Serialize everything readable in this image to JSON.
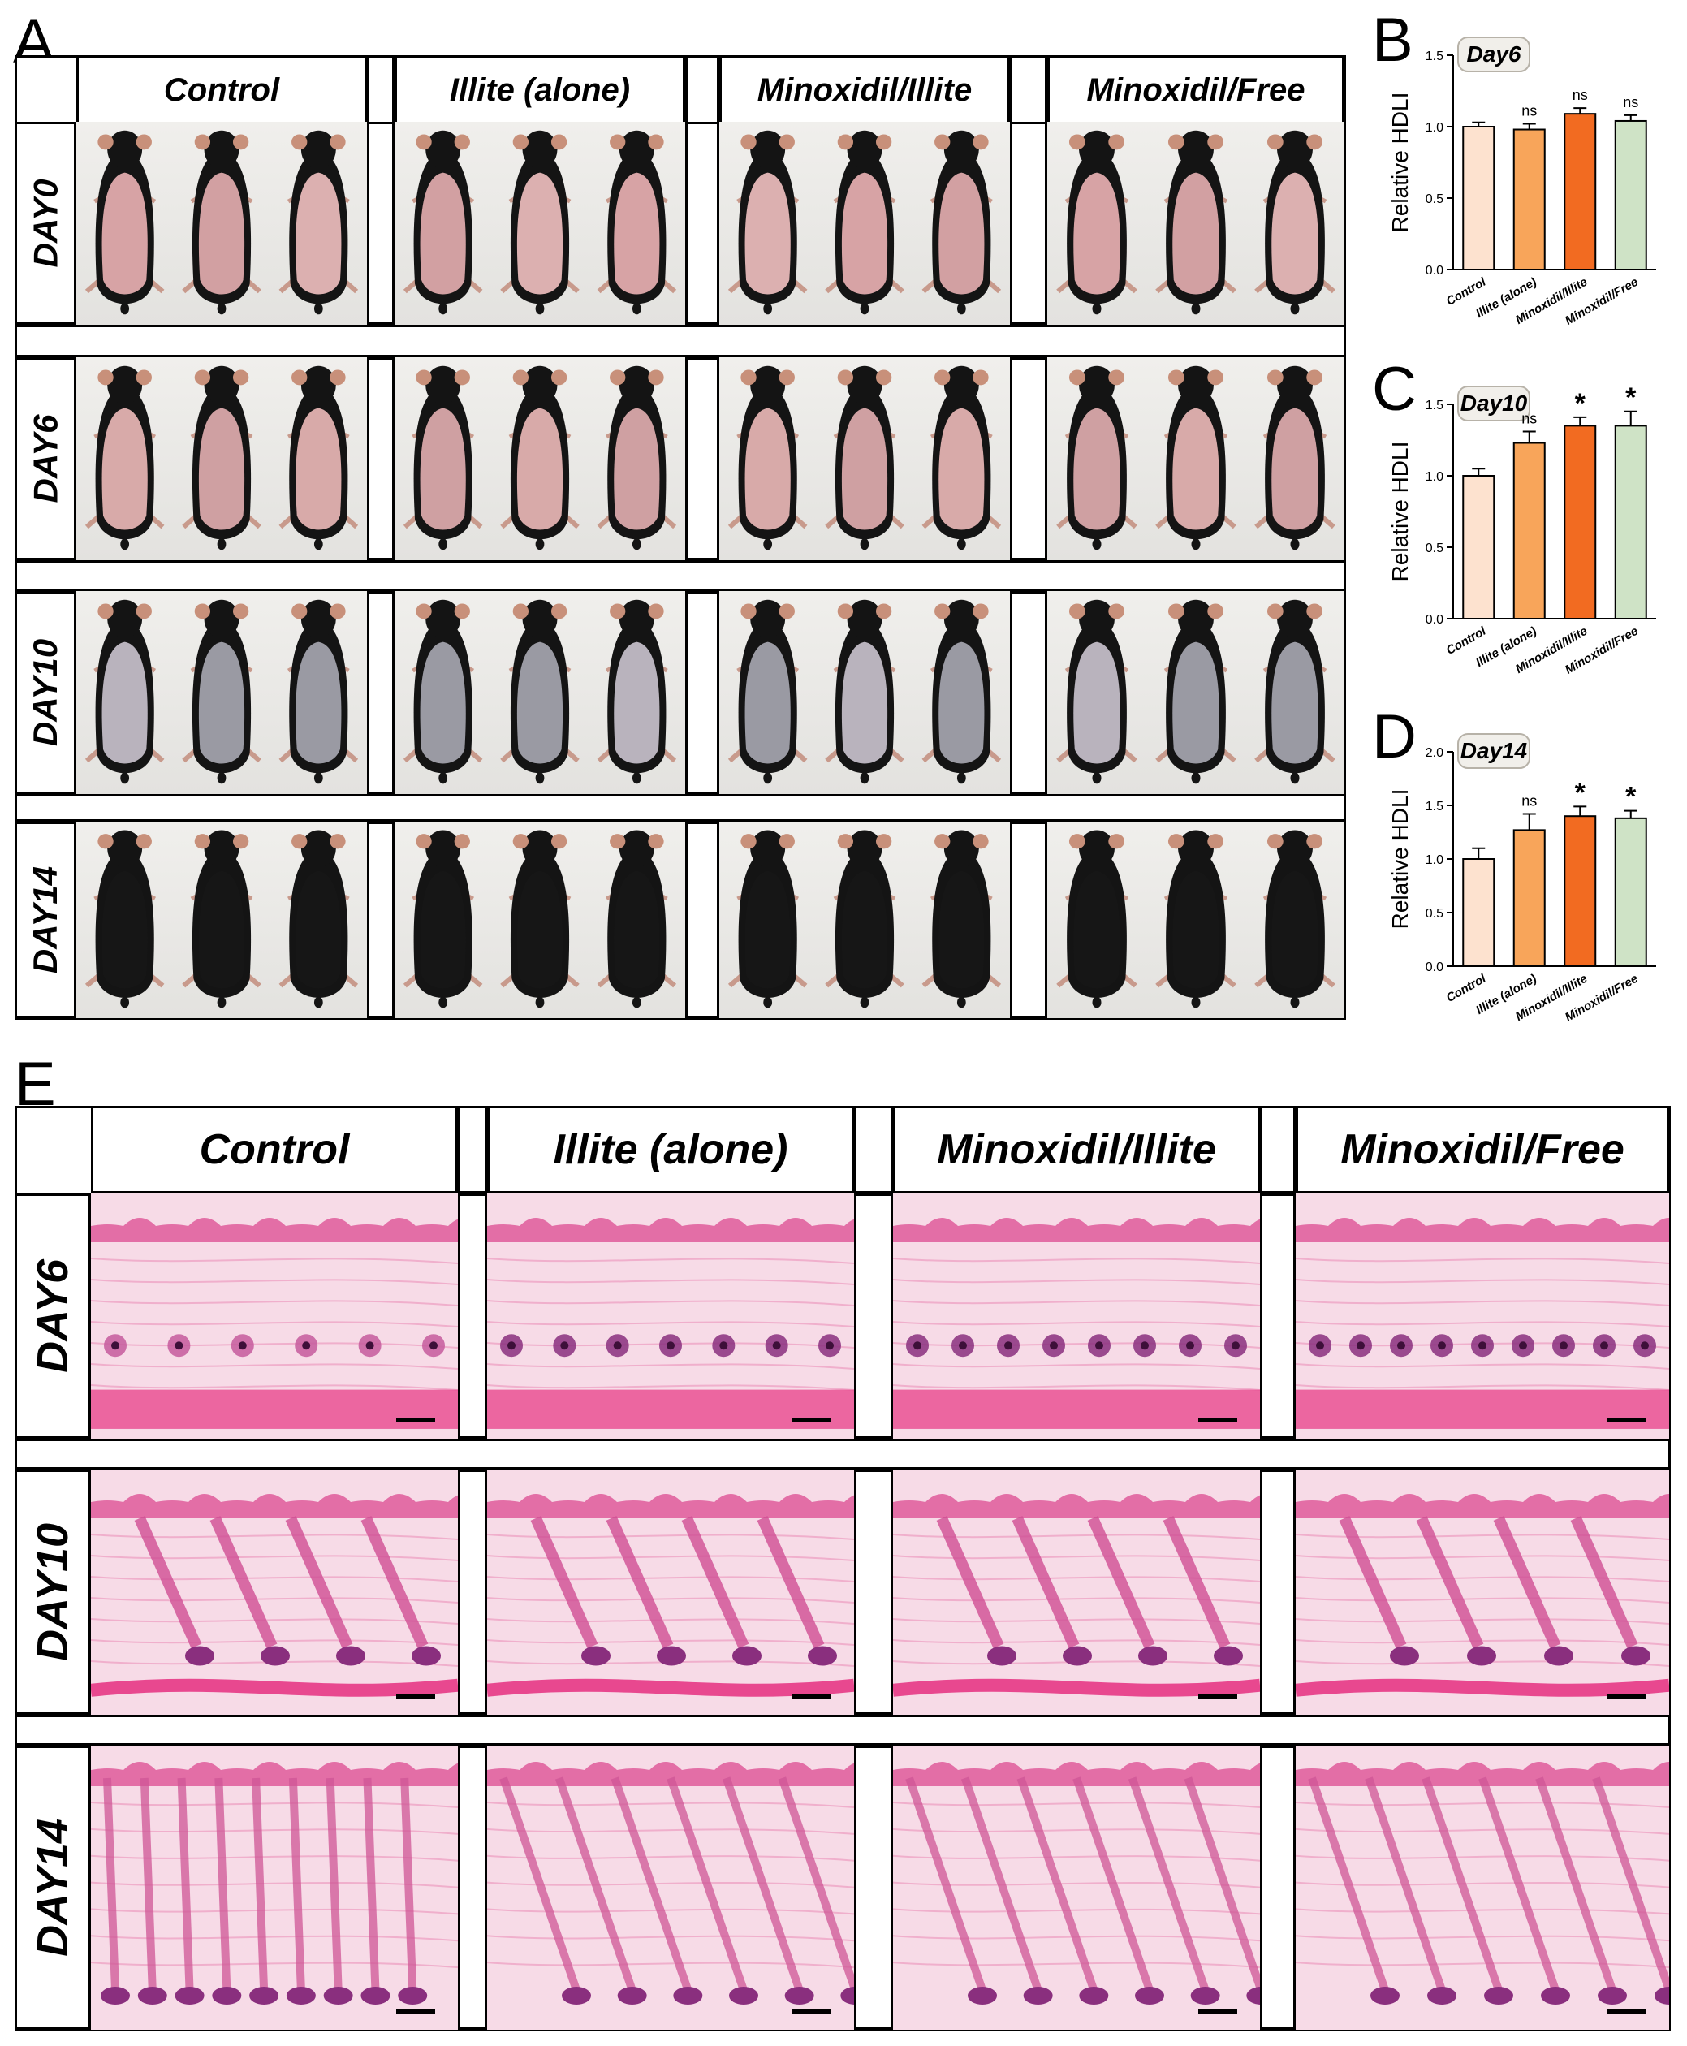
{
  "panel_letters": {
    "a": "A",
    "b": "B",
    "c": "C",
    "d": "D",
    "e": "E"
  },
  "groups": [
    "Control",
    "Illite (alone)",
    "Minoxidil/Illite",
    "Minoxidil/Free"
  ],
  "mice_rows": [
    "DAY0",
    "DAY6",
    "DAY10",
    "DAY14"
  ],
  "histo_rows": [
    "DAY6",
    "DAY10",
    "DAY14"
  ],
  "colors": {
    "control": "#fde2cf",
    "illite_alone": "#f8a55a",
    "minoxidil_illite": "#f26b21",
    "minoxidil_free": "#cfe3c6",
    "skin_pink": "#d9a6a6",
    "mouse_black": "#141414",
    "ear": "#c8907a",
    "he_pink": "#f3b7d0",
    "he_purple": "#8a2f7e"
  },
  "icons": [
    "mouse-photo-icon",
    "histology-section-icon"
  ],
  "chart_data": [
    {
      "panel": "B",
      "type": "bar",
      "title": "Day6",
      "ylabel": "Relative HDLI",
      "categories": [
        "Control",
        "Illite (alone)",
        "Minoxidil/Illite",
        "Minoxidil/Free"
      ],
      "values": [
        1.0,
        0.98,
        1.09,
        1.04
      ],
      "errors": [
        0.03,
        0.04,
        0.04,
        0.04
      ],
      "annotations": [
        "",
        "ns",
        "ns",
        "ns"
      ],
      "ylim": [
        0,
        1.5
      ],
      "yticks": [
        "0.0",
        "0.5",
        "1.0",
        "1.5"
      ]
    },
    {
      "panel": "C",
      "type": "bar",
      "title": "Day10",
      "ylabel": "Relative HDLI",
      "categories": [
        "Control",
        "Illite (alone)",
        "Minoxidil/Illite",
        "Minoxidil/Free"
      ],
      "values": [
        1.0,
        1.23,
        1.35,
        1.35
      ],
      "errors": [
        0.05,
        0.08,
        0.06,
        0.1
      ],
      "annotations": [
        "",
        "ns",
        "*",
        "*"
      ],
      "ylim": [
        0,
        1.5
      ],
      "yticks": [
        "0.0",
        "0.5",
        "1.0",
        "1.5"
      ]
    },
    {
      "panel": "D",
      "type": "bar",
      "title": "Day14",
      "ylabel": "Relative HDLI",
      "categories": [
        "Control",
        "Illite (alone)",
        "Minoxidil/Illite",
        "Minoxidil/Free"
      ],
      "values": [
        1.0,
        1.27,
        1.4,
        1.38
      ],
      "errors": [
        0.1,
        0.15,
        0.09,
        0.07
      ],
      "annotations": [
        "",
        "ns",
        "*",
        "*"
      ],
      "ylim": [
        0,
        2.0
      ],
      "yticks": [
        "0.0",
        "0.5",
        "1.0",
        "1.5",
        "2.0"
      ]
    }
  ]
}
